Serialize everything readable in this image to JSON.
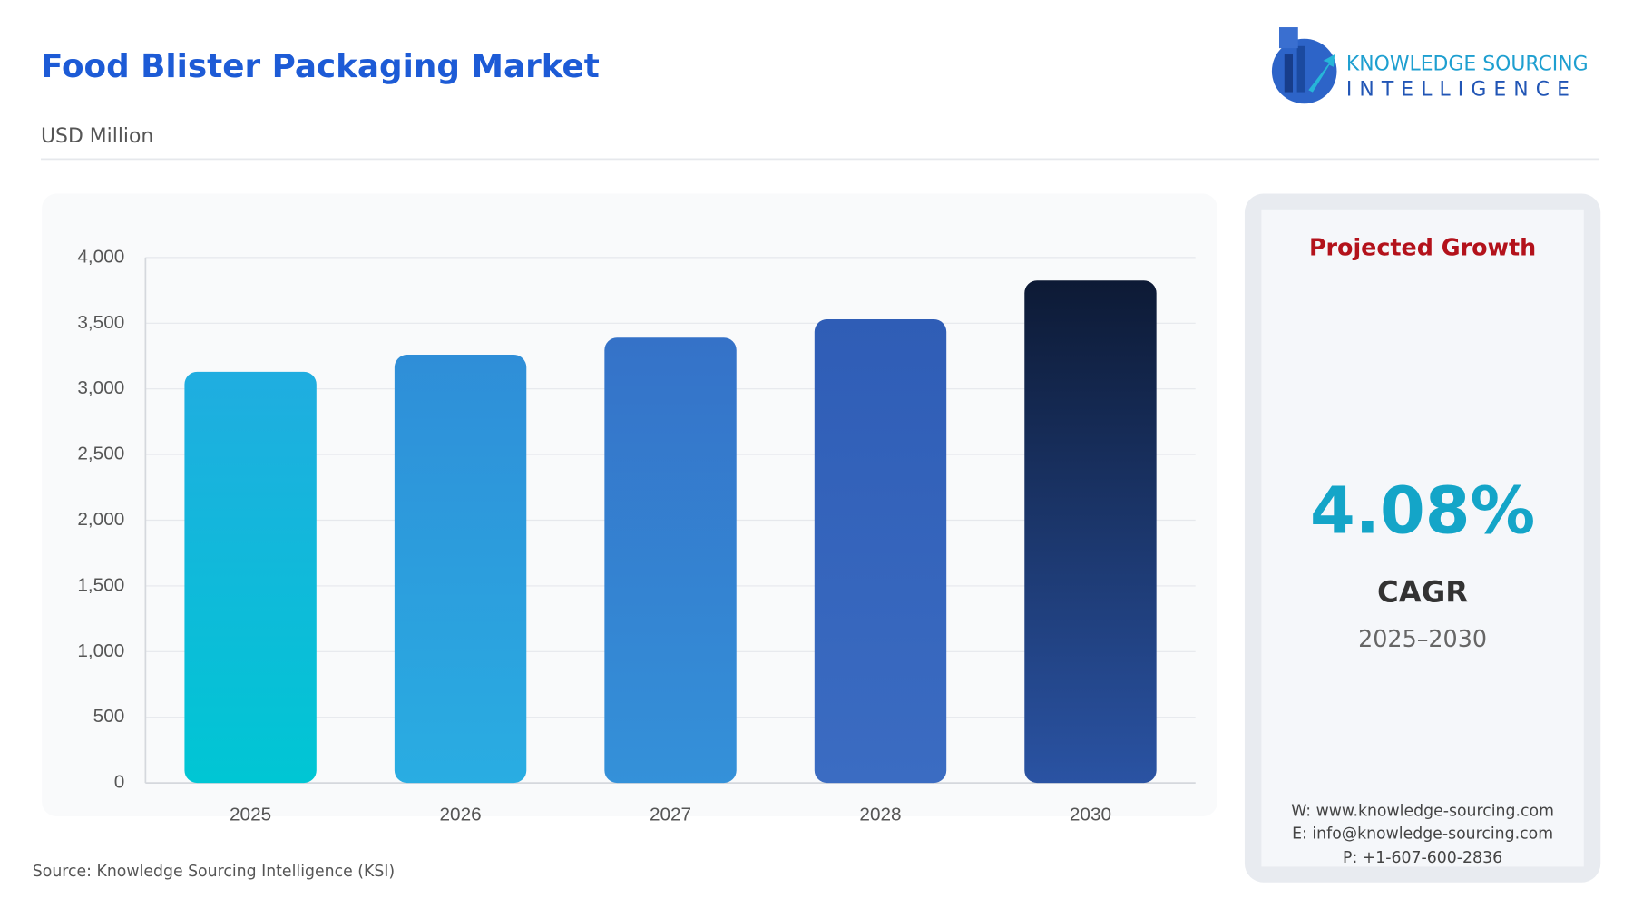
{
  "chart_data": {
    "type": "bar",
    "title": "Food Blister Packaging Market",
    "subtitle": "USD Million",
    "source": "Source: Knowledge Sourcing Intelligence (KSI)",
    "categories": [
      "2025",
      "2026",
      "2027",
      "2028",
      "2030"
    ],
    "values": [
      3130,
      3260,
      3390,
      3530,
      3825
    ],
    "gradients": [
      {
        "top": "#20ade0",
        "bottom": "#00c6d4"
      },
      {
        "top": "#2f8ed8",
        "bottom": "#29ade2"
      },
      {
        "top": "#3572c8",
        "bottom": "#3491d9"
      },
      {
        "top": "#2f5db6",
        "bottom": "#3b6cc2"
      },
      {
        "top": "#0d1a35",
        "bottom": "#2a53a3"
      }
    ],
    "ylim": [
      0,
      4000
    ],
    "yticks": [
      0,
      500,
      {
        "value": 1000,
        "label": "1,000"
      },
      {
        "value": 1500,
        "label": "1,500"
      },
      {
        "value": 2000,
        "label": "2,000"
      },
      {
        "value": 2500,
        "label": "2,500"
      },
      {
        "value": 3000,
        "label": "3,000"
      },
      {
        "value": 3500,
        "label": "3,500"
      },
      {
        "value": 4000,
        "label": "4,000"
      }
    ],
    "grid": true
  },
  "logo": {
    "line1": "KNOWLEDGE SOURCING",
    "line2": "INTELLIGENCE"
  },
  "panel": {
    "heading": "Projected Growth",
    "value": "4.08%",
    "label": "CAGR",
    "period": "2025–2030",
    "contacts": [
      "W: www.knowledge-sourcing.com",
      "E: info@knowledge-sourcing.com",
      "P: +1-607-600-2836"
    ]
  }
}
